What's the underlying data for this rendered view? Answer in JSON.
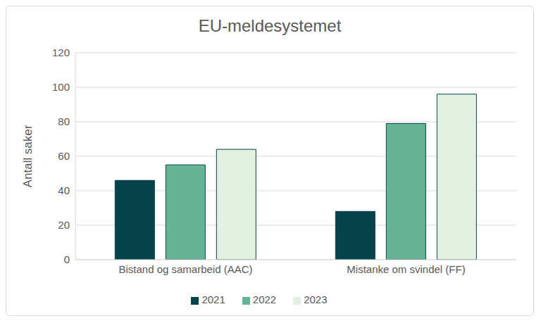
{
  "chart_data": {
    "type": "bar",
    "title": "EU-meldesystemet",
    "ylabel": "Antall saker",
    "categories": [
      "Bistand og samarbeid (AAC)",
      "Mistanke om svindel (FF)"
    ],
    "series": [
      {
        "name": "2021",
        "color": "#07434a",
        "values": [
          46,
          28
        ]
      },
      {
        "name": "2022",
        "color": "#67b395",
        "values": [
          55,
          79
        ]
      },
      {
        "name": "2023",
        "color": "#e1f0e0",
        "values": [
          64,
          96
        ]
      }
    ],
    "ylim": [
      0,
      120
    ],
    "yticks": [
      0,
      20,
      40,
      60,
      80,
      100,
      120
    ],
    "grid": true,
    "legend": "bottom"
  }
}
